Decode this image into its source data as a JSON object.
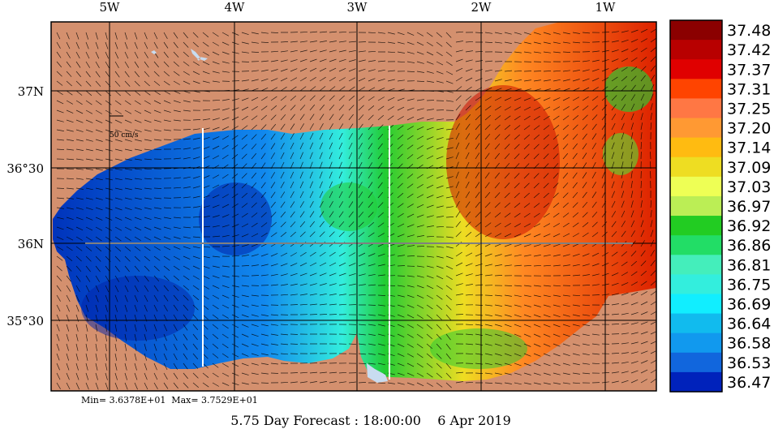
{
  "map": {
    "lon_labels": [
      "5W",
      "4W",
      "3W",
      "2W",
      "1W"
    ],
    "lat_labels": [
      "37N",
      "36°30",
      "36N",
      "35°30"
    ],
    "scale_label": "50 cm/s",
    "minmax": "Min= 3.6378E+01  Max= 3.7529E+01",
    "forecast_caption": "5.75 Day Forecast : 18:00:00    6 Apr 2019",
    "colors": {
      "land": "#d4906e",
      "grid": "#000000",
      "section_lines": "#ffffff",
      "lake": "#c8dcf0"
    }
  },
  "colorbar": {
    "values": [
      "37.48",
      "37.42",
      "37.37",
      "37.31",
      "37.25",
      "37.20",
      "37.14",
      "37.09",
      "37.03",
      "36.97",
      "36.92",
      "36.86",
      "36.81",
      "36.75",
      "36.69",
      "36.64",
      "36.58",
      "36.53",
      "36.47"
    ],
    "colors": [
      "#8b0000",
      "#b80000",
      "#e00000",
      "#ff4400",
      "#ff7744",
      "#ff9933",
      "#ffbb11",
      "#eedd22",
      "#eeff55",
      "#bbee55",
      "#22cc22",
      "#22dd66",
      "#44eebb",
      "#33eedd",
      "#11eeff",
      "#11bbee",
      "#1199ee",
      "#1166dd",
      "#0022bb"
    ]
  }
}
